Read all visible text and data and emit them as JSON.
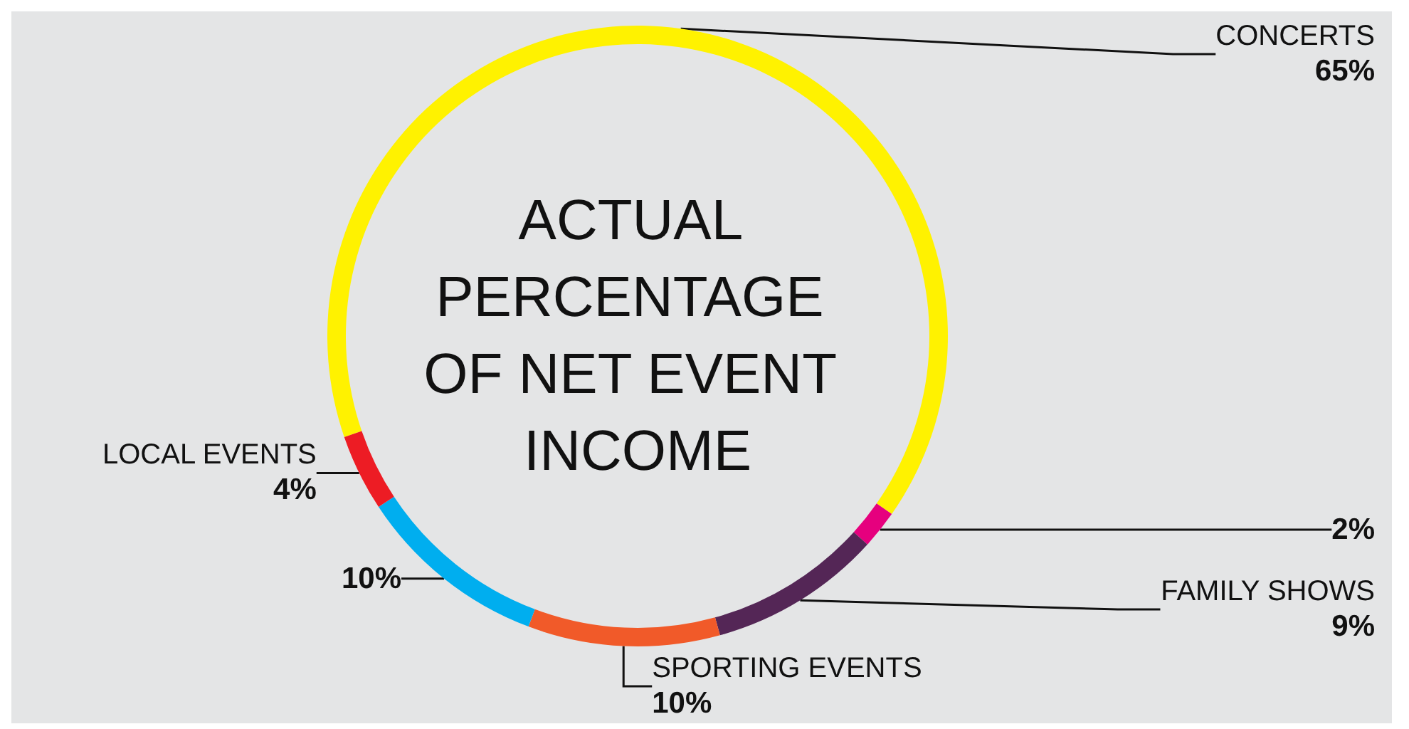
{
  "chart_data": {
    "type": "donut",
    "title": "ACTUAL PERCENTAGE OF NET EVENT INCOME",
    "categories": [
      "CONCERTS",
      null,
      "FAMILY SHOWS",
      "SPORTING EVENTS",
      null,
      "LOCAL EVENTS"
    ],
    "values": [
      65,
      2,
      9,
      10,
      10,
      4
    ],
    "value_labels": [
      "65%",
      "2%",
      "9%",
      "10%",
      "10%",
      "4%"
    ],
    "colors": [
      "#fff200",
      "#e6007e",
      "#542656",
      "#f15a29",
      "#00aeef",
      "#ed1c24"
    ],
    "legend": false
  }
}
